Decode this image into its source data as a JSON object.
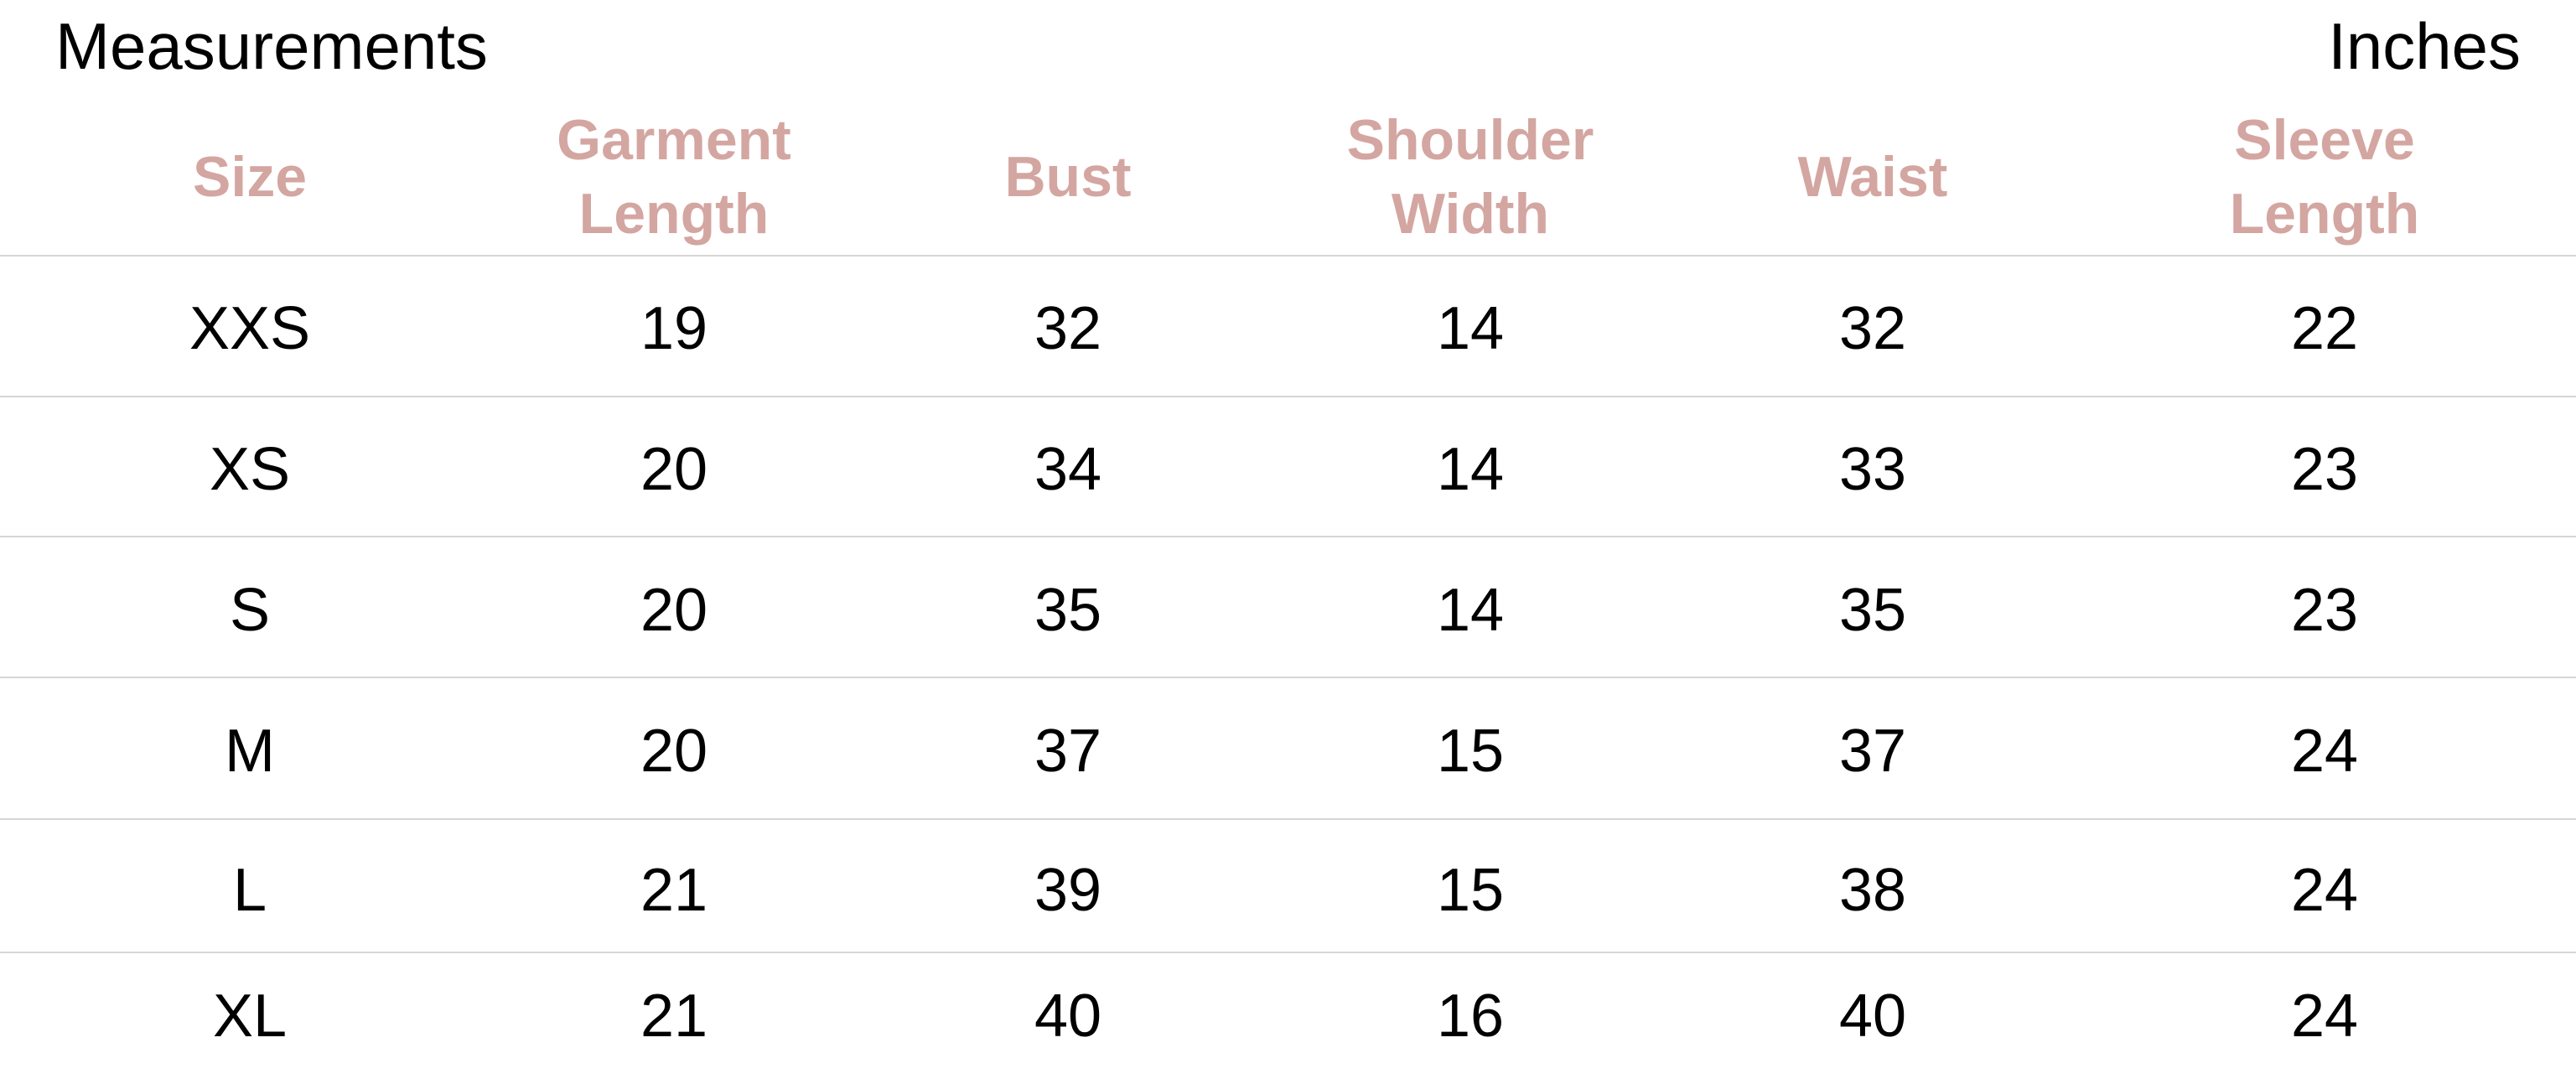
{
  "title": "Measurements",
  "unit": "Inches",
  "header_color": "#d4a6a1",
  "columns": [
    "Size",
    "Garment\nLength",
    "Bust",
    "Shoulder\nWidth",
    "Waist",
    "Sleeve Length"
  ],
  "rows": [
    [
      "XXS",
      "19",
      "32",
      "14",
      "32",
      "22"
    ],
    [
      "XS",
      "20",
      "34",
      "14",
      "33",
      "23"
    ],
    [
      "S",
      "20",
      "35",
      "14",
      "35",
      "23"
    ],
    [
      "M",
      "20",
      "37",
      "15",
      "37",
      "24"
    ],
    [
      "L",
      "21",
      "39",
      "15",
      "38",
      "24"
    ],
    [
      "XL",
      "21",
      "40",
      "16",
      "40",
      "24"
    ]
  ]
}
